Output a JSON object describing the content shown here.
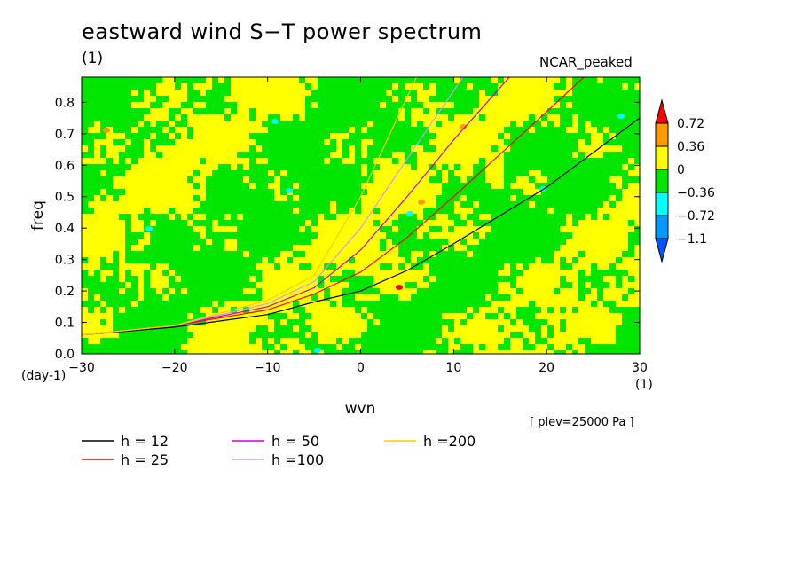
{
  "chart_data": {
    "type": "heatmap",
    "title": "eastward wind S−T power spectrum",
    "value_unit": "(1)",
    "dataset": "NCAR_peaked",
    "plev_note": "[ plev=25000 Pa ]",
    "xlabel": "wvn",
    "ylabel": "freq",
    "x_unit": "(1)",
    "y_unit": "(day-1)",
    "xlim": [
      -30,
      30
    ],
    "ylim": [
      0,
      0.88
    ],
    "xticks": [
      -30,
      -20,
      -10,
      0,
      10,
      20,
      30
    ],
    "xtick_labels": [
      "−30",
      "−20",
      "−10",
      "0",
      "10",
      "20",
      "30"
    ],
    "yticks": [
      0,
      0.1,
      0.2,
      0.3,
      0.4,
      0.5,
      0.6,
      0.7,
      0.8
    ],
    "ytick_labels": [
      "0.0",
      "0.1",
      "0.2",
      "0.3",
      "0.4",
      "0.5",
      "0.6",
      "0.7",
      "0.8"
    ],
    "colorbar": {
      "levels": [
        "0.72",
        "0.36",
        "0",
        "−0.36",
        "−0.72",
        "−1.1"
      ],
      "bands": [
        {
          "min": 0.72,
          "max": null,
          "color": "#ff0000"
        },
        {
          "min": 0.36,
          "max": 0.72,
          "color": "#ff9900"
        },
        {
          "min": 0,
          "max": 0.36,
          "color": "#ffff00"
        },
        {
          "min": -0.36,
          "max": 0,
          "color": "#00e600"
        },
        {
          "min": -0.72,
          "max": -0.36,
          "color": "#00ffff"
        },
        {
          "min": -1.1,
          "max": -0.72,
          "color": "#0099ff"
        },
        {
          "min": null,
          "max": -1.1,
          "color": "#0055ff"
        }
      ]
    },
    "series": [
      {
        "name": "h = 12",
        "color": "#000000",
        "h": 12,
        "x": [
          -30,
          -20,
          -10,
          -5,
          0,
          5,
          10,
          20,
          30
        ],
        "y": [
          0.06,
          0.085,
          0.125,
          0.165,
          0.2,
          0.265,
          0.35,
          0.53,
          0.75
        ]
      },
      {
        "name": "h = 25",
        "color": "#ff0000",
        "h": 25,
        "x": [
          -30,
          -20,
          -10,
          -5,
          0,
          5,
          10,
          20,
          24
        ],
        "y": [
          0.06,
          0.09,
          0.14,
          0.19,
          0.26,
          0.37,
          0.5,
          0.77,
          0.88
        ]
      },
      {
        "name": "h = 50",
        "color": "#cc00cc",
        "h": 50,
        "x": [
          -30,
          -20,
          -10,
          -5,
          0,
          5,
          10,
          16
        ],
        "y": [
          0.06,
          0.09,
          0.15,
          0.21,
          0.33,
          0.5,
          0.68,
          0.88
        ]
      },
      {
        "name": "h =100",
        "color": "#cc99ff",
        "h": 100,
        "x": [
          -30,
          -20,
          -10,
          -5,
          0,
          5,
          11
        ],
        "y": [
          0.06,
          0.09,
          0.16,
          0.23,
          0.4,
          0.62,
          0.88
        ]
      },
      {
        "name": "h =200",
        "color": "#ffcc00",
        "h": 200,
        "x": [
          -30,
          -20,
          -10,
          -5,
          0,
          6
        ],
        "y": [
          0.06,
          0.09,
          0.17,
          0.25,
          0.5,
          0.88
        ]
      }
    ]
  }
}
